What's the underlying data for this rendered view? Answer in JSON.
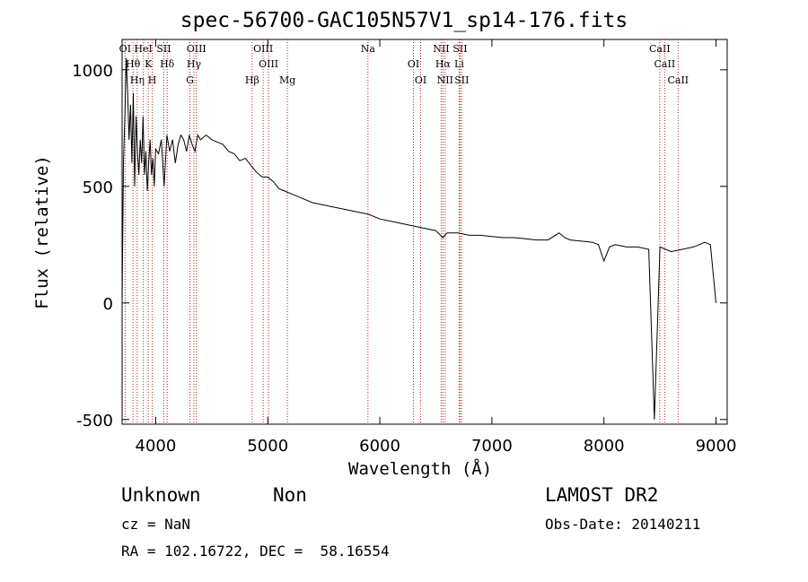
{
  "chart_data": {
    "type": "line",
    "title": "spec-56700-GAC105N57V1_sp14-176.fits",
    "xlabel": "Wavelength (Å)",
    "ylabel": "Flux (relative)",
    "xlim": [
      3700,
      9100
    ],
    "ylim": [
      -520,
      1130
    ],
    "xticks": [
      4000,
      5000,
      6000,
      7000,
      8000,
      9000
    ],
    "yticks": [
      -500,
      0,
      500,
      1000
    ],
    "grid": false,
    "line_color": "#000000",
    "marker_color": "#b22222",
    "series": [
      {
        "x": [
          3700,
          3712,
          3725,
          3737,
          3750,
          3762,
          3775,
          3787,
          3800,
          3812,
          3825,
          3837,
          3850,
          3862,
          3875,
          3887,
          3900,
          3912,
          3925,
          3937,
          3950,
          3962,
          3975,
          3987,
          4000,
          4025,
          4050,
          4075,
          4100,
          4125,
          4150,
          4175,
          4200,
          4225,
          4250,
          4275,
          4300,
          4325,
          4350,
          4375,
          4400,
          4450,
          4500,
          4550,
          4600,
          4650,
          4700,
          4750,
          4800,
          4850,
          4900,
          4950,
          5000,
          5050,
          5100,
          5150,
          5200,
          5300,
          5400,
          5500,
          5600,
          5700,
          5800,
          5900,
          6000,
          6100,
          6200,
          6300,
          6400,
          6500,
          6563,
          6600,
          6700,
          6800,
          6900,
          7000,
          7100,
          7200,
          7300,
          7400,
          7500,
          7600,
          7650,
          7700,
          7800,
          7900,
          7950,
          8000,
          8050,
          8100,
          8200,
          8300,
          8400,
          8450,
          8500,
          8600,
          8700,
          8800,
          8900,
          8950,
          9000
        ],
        "y": [
          0,
          600,
          800,
          1050,
          900,
          700,
          850,
          600,
          900,
          500,
          800,
          650,
          550,
          700,
          600,
          800,
          550,
          650,
          480,
          600,
          700,
          550,
          620,
          500,
          660,
          640,
          700,
          500,
          720,
          650,
          700,
          600,
          680,
          720,
          700,
          650,
          720,
          680,
          650,
          720,
          700,
          720,
          700,
          690,
          680,
          650,
          640,
          610,
          620,
          590,
          560,
          540,
          540,
          520,
          490,
          480,
          470,
          450,
          430,
          420,
          410,
          400,
          390,
          380,
          360,
          350,
          340,
          330,
          320,
          310,
          280,
          300,
          300,
          290,
          290,
          285,
          280,
          280,
          275,
          270,
          270,
          300,
          280,
          270,
          265,
          260,
          250,
          180,
          240,
          250,
          240,
          240,
          230,
          -500,
          240,
          220,
          230,
          240,
          260,
          250,
          0
        ]
      }
    ],
    "lines": [
      {
        "label": "OI",
        "x": 3727
      },
      {
        "label": "Hθ",
        "x": 3797
      },
      {
        "label": "Hη",
        "x": 3835
      },
      {
        "label": "HeI",
        "x": 3889
      },
      {
        "label": "K",
        "x": 3934
      },
      {
        "label": "H",
        "x": 3969
      },
      {
        "label": "SII",
        "x": 4072
      },
      {
        "label": "Hδ",
        "x": 4102
      },
      {
        "label": "G",
        "x": 4305
      },
      {
        "label": "OIII",
        "x": 4363
      },
      {
        "label": "Hγ",
        "x": 4341
      },
      {
        "label": "Hβ",
        "x": 4861
      },
      {
        "label": "OIII",
        "x": 4959
      },
      {
        "label": "OIII",
        "x": 5007
      },
      {
        "label": "Mg",
        "x": 5175
      },
      {
        "label": "Na",
        "x": 5894
      },
      {
        "label": "OI",
        "x": 6300
      },
      {
        "label": "OI",
        "x": 6364
      },
      {
        "label": "NII",
        "x": 6548
      },
      {
        "label": "Hα",
        "x": 6563
      },
      {
        "label": "NII",
        "x": 6583
      },
      {
        "label": "SII",
        "x": 6716
      },
      {
        "label": "Li",
        "x": 6708
      },
      {
        "label": "SII",
        "x": 6731
      },
      {
        "label": "CaII",
        "x": 8498
      },
      {
        "label": "CaII",
        "x": 8542
      },
      {
        "label": "CaII",
        "x": 8662
      }
    ]
  },
  "footer": {
    "class_label": "Unknown",
    "subclass_label": "Non",
    "survey": "LAMOST DR2",
    "cz": "cz = NaN",
    "obs_date": "Obs-Date: 20140211",
    "coords": "RA = 102.16722, DEC =  58.16554"
  }
}
